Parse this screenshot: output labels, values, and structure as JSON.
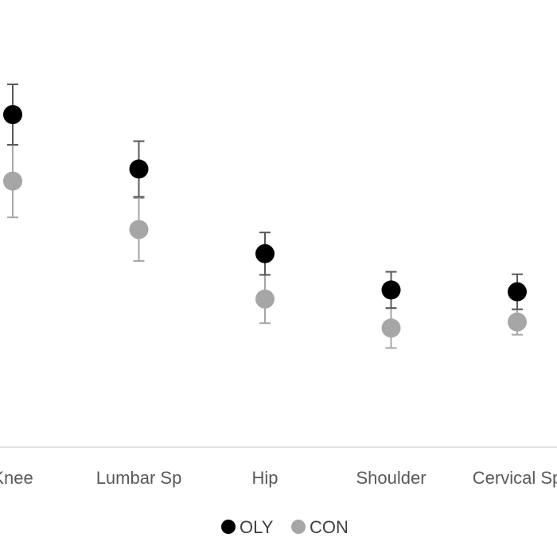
{
  "chart_data": {
    "type": "scatter",
    "categories": [
      "Knee",
      "Lumbar Sp",
      "Hip",
      "Shoulder",
      "Cervical Sp"
    ],
    "series": [
      {
        "name": "OLY",
        "color": "#000000",
        "errorbar_color": "#595959",
        "values": [
          5.5,
          4.6,
          3.2,
          2.6,
          2.57
        ],
        "upper": [
          6.0,
          5.06,
          3.55,
          2.9,
          2.86
        ],
        "lower": [
          5.0,
          4.14,
          2.85,
          2.3,
          2.28
        ]
      },
      {
        "name": "CON",
        "color": "#a6a6a6",
        "errorbar_color": "#a6a6a6",
        "values": [
          4.4,
          3.6,
          2.45,
          1.97,
          2.07
        ],
        "upper": [
          5.0,
          4.12,
          2.85,
          2.3,
          2.28
        ],
        "lower": [
          3.8,
          3.08,
          2.05,
          1.64,
          1.86
        ]
      }
    ],
    "ylim": [
      0,
      6.75
    ],
    "legend_position": "bottom",
    "grid": false
  }
}
